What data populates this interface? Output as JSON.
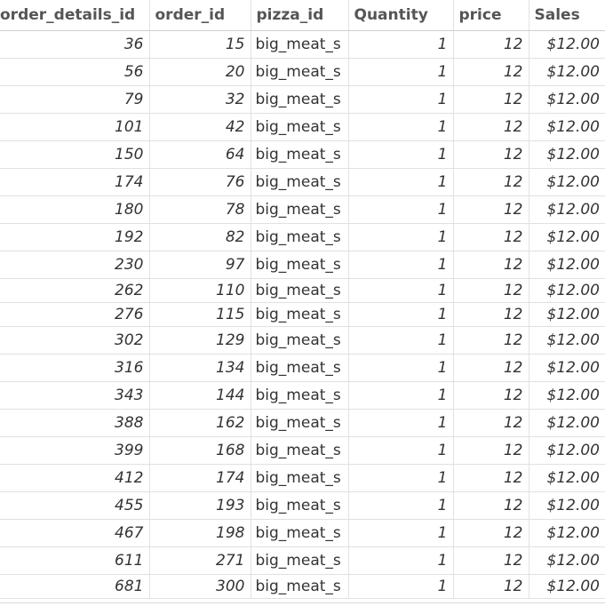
{
  "table": {
    "columns": [
      "order_details_id",
      "order_id",
      "pizza_id",
      "Quantity",
      "price",
      "Sales"
    ],
    "rows": [
      {
        "order_details_id": "36",
        "order_id": "15",
        "pizza_id": "big_meat_s",
        "quantity": "1",
        "price": "12",
        "sales": "$12.00"
      },
      {
        "order_details_id": "56",
        "order_id": "20",
        "pizza_id": "big_meat_s",
        "quantity": "1",
        "price": "12",
        "sales": "$12.00"
      },
      {
        "order_details_id": "79",
        "order_id": "32",
        "pizza_id": "big_meat_s",
        "quantity": "1",
        "price": "12",
        "sales": "$12.00"
      },
      {
        "order_details_id": "101",
        "order_id": "42",
        "pizza_id": "big_meat_s",
        "quantity": "1",
        "price": "12",
        "sales": "$12.00"
      },
      {
        "order_details_id": "150",
        "order_id": "64",
        "pizza_id": "big_meat_s",
        "quantity": "1",
        "price": "12",
        "sales": "$12.00"
      },
      {
        "order_details_id": "174",
        "order_id": "76",
        "pizza_id": "big_meat_s",
        "quantity": "1",
        "price": "12",
        "sales": "$12.00"
      },
      {
        "order_details_id": "180",
        "order_id": "78",
        "pizza_id": "big_meat_s",
        "quantity": "1",
        "price": "12",
        "sales": "$12.00"
      },
      {
        "order_details_id": "192",
        "order_id": "82",
        "pizza_id": "big_meat_s",
        "quantity": "1",
        "price": "12",
        "sales": "$12.00"
      },
      {
        "order_details_id": "230",
        "order_id": "97",
        "pizza_id": "big_meat_s",
        "quantity": "1",
        "price": "12",
        "sales": "$12.00"
      },
      {
        "order_details_id": "262",
        "order_id": "110",
        "pizza_id": "big_meat_s",
        "quantity": "1",
        "price": "12",
        "sales": "$12.00"
      },
      {
        "order_details_id": "276",
        "order_id": "115",
        "pizza_id": "big_meat_s",
        "quantity": "1",
        "price": "12",
        "sales": "$12.00"
      },
      {
        "order_details_id": "302",
        "order_id": "129",
        "pizza_id": "big_meat_s",
        "quantity": "1",
        "price": "12",
        "sales": "$12.00"
      },
      {
        "order_details_id": "316",
        "order_id": "134",
        "pizza_id": "big_meat_s",
        "quantity": "1",
        "price": "12",
        "sales": "$12.00"
      },
      {
        "order_details_id": "343",
        "order_id": "144",
        "pizza_id": "big_meat_s",
        "quantity": "1",
        "price": "12",
        "sales": "$12.00"
      },
      {
        "order_details_id": "388",
        "order_id": "162",
        "pizza_id": "big_meat_s",
        "quantity": "1",
        "price": "12",
        "sales": "$12.00"
      },
      {
        "order_details_id": "399",
        "order_id": "168",
        "pizza_id": "big_meat_s",
        "quantity": "1",
        "price": "12",
        "sales": "$12.00"
      },
      {
        "order_details_id": "412",
        "order_id": "174",
        "pizza_id": "big_meat_s",
        "quantity": "1",
        "price": "12",
        "sales": "$12.00"
      },
      {
        "order_details_id": "455",
        "order_id": "193",
        "pizza_id": "big_meat_s",
        "quantity": "1",
        "price": "12",
        "sales": "$12.00"
      },
      {
        "order_details_id": "467",
        "order_id": "198",
        "pizza_id": "big_meat_s",
        "quantity": "1",
        "price": "12",
        "sales": "$12.00"
      },
      {
        "order_details_id": "611",
        "order_id": "271",
        "pizza_id": "big_meat_s",
        "quantity": "1",
        "price": "12",
        "sales": "$12.00"
      },
      {
        "order_details_id": "681",
        "order_id": "300",
        "pizza_id": "big_meat_s",
        "quantity": "1",
        "price": "12",
        "sales": "$12.00"
      }
    ]
  }
}
